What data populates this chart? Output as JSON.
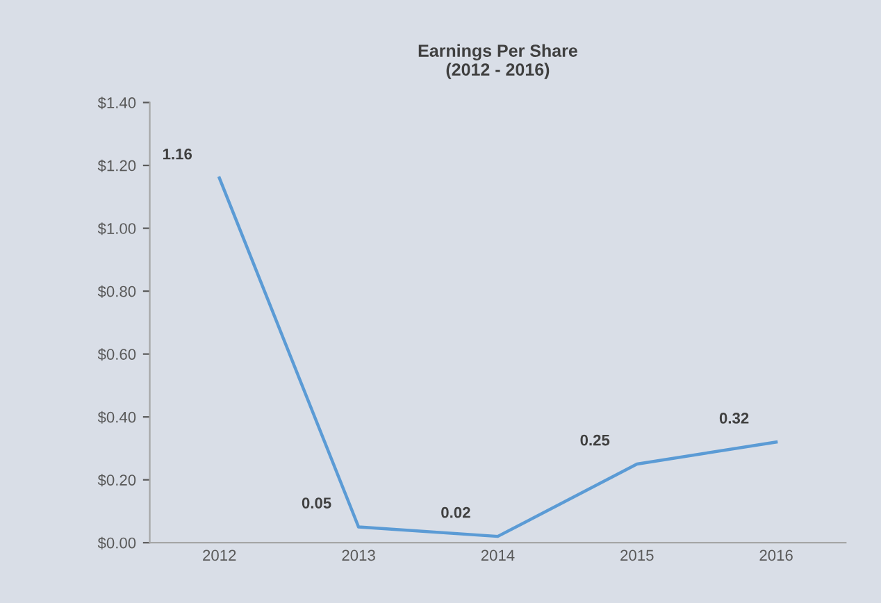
{
  "chart_data": {
    "type": "line",
    "title": "Earnings Per Share\n(2012 - 2016)",
    "categories": [
      "2012",
      "2013",
      "2014",
      "2015",
      "2016"
    ],
    "series": [
      {
        "color": "#5b9bd5",
        "values": [
          1.16,
          0.05,
          0.02,
          0.25,
          0.32
        ]
      }
    ],
    "value_labels": [
      "1.16",
      "0.05",
      "0.02",
      "0.25",
      "0.32"
    ],
    "ylim": [
      0,
      1.4
    ],
    "yticks": [
      {
        "value": 0,
        "label": "$0.00"
      },
      {
        "value": 0.2,
        "label": "$0.20"
      },
      {
        "value": 0.4,
        "label": "$0.40"
      },
      {
        "value": 0.6,
        "label": "$0.60"
      },
      {
        "value": 0.8,
        "label": "$0.80"
      },
      {
        "value": 1.0,
        "label": "$1.00"
      },
      {
        "value": 1.2,
        "label": "$1.20"
      },
      {
        "value": 1.4,
        "label": "$1.40"
      }
    ],
    "grid": false,
    "marker": "none",
    "line_style": "solid"
  }
}
